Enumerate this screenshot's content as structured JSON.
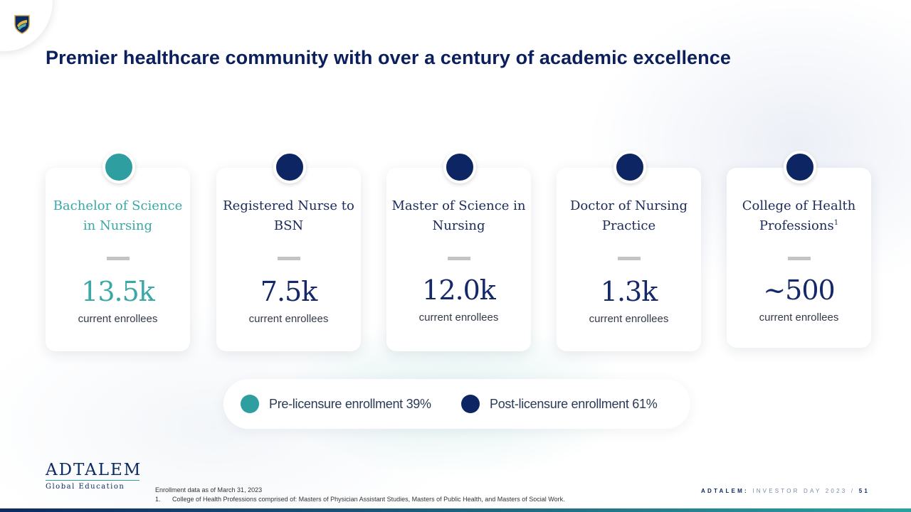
{
  "header": {
    "title": "Premier healthcare community with over a century of academic excellence"
  },
  "colors": {
    "pre_licensure": "#2e9ea0",
    "post_licensure": "#0d2563",
    "heading_navy": "#0b1f5c",
    "teal_text": "#3aa8a5"
  },
  "programs": [
    {
      "title": "Bachelor of Science in Nursing",
      "footnote": "",
      "value": "13.5k",
      "subtitle": "current enrollees",
      "category": "pre_licensure"
    },
    {
      "title": "Registered Nurse to BSN",
      "footnote": "",
      "value": "7.5k",
      "subtitle": "current enrollees",
      "category": "post_licensure"
    },
    {
      "title": "Master of Science in Nursing",
      "footnote": "",
      "value": "12.0k",
      "subtitle": "current enrollees",
      "category": "post_licensure"
    },
    {
      "title": "Doctor of Nursing Practice",
      "footnote": "",
      "value": "1.3k",
      "subtitle": "current enrollees",
      "category": "post_licensure"
    },
    {
      "title": "College of Health Professions",
      "footnote": "1",
      "value": "~500",
      "subtitle": "current enrollees",
      "category": "post_licensure"
    }
  ],
  "legend": {
    "pre": "Pre-licensure enrollment 39%",
    "post": "Post-licensure enrollment 61%"
  },
  "logo": {
    "name": "ADTALEM",
    "subtitle": "Global Education"
  },
  "footnotes": {
    "source": "Enrollment data as of March 31, 2023",
    "note_number": "1.",
    "note": "College of Health Professions comprised of: Masters of Physician Assistant Studies, Masters of Public Health, and Masters of Social Work."
  },
  "footer": {
    "brand": "ADTALEM:",
    "event": "INVESTOR DAY 2023",
    "separator": "/",
    "page": "51"
  }
}
